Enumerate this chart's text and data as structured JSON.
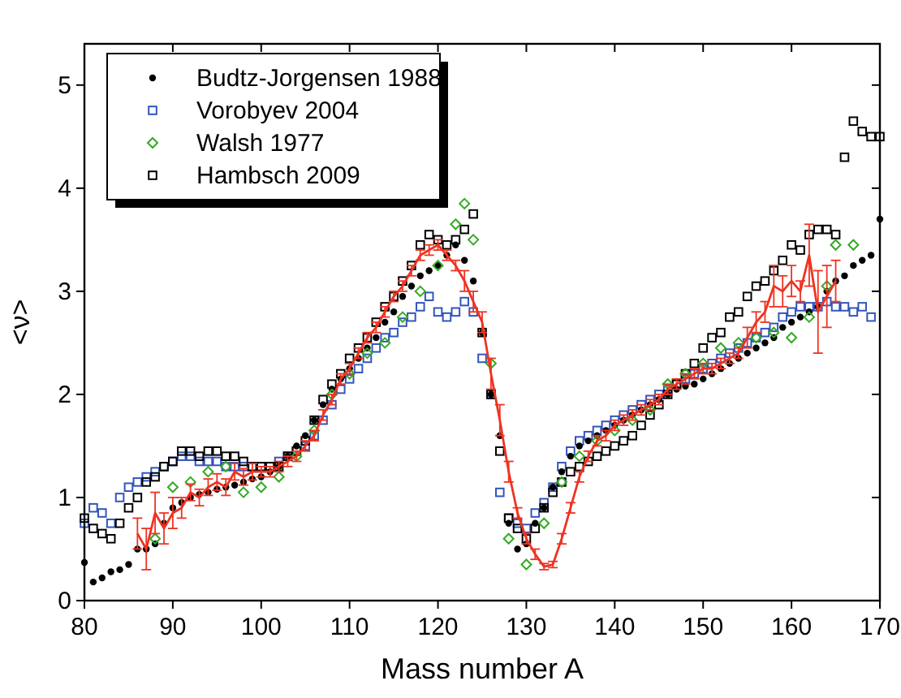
{
  "chart_data": {
    "type": "scatter",
    "xlabel": "Mass number A",
    "ylabel": "<ν>",
    "xlim": [
      80,
      170
    ],
    "ylim": [
      0,
      5.4
    ],
    "xticks": [
      80,
      90,
      100,
      110,
      120,
      130,
      140,
      150,
      160,
      170
    ],
    "yticks": [
      0,
      1,
      2,
      3,
      4,
      5
    ],
    "grid": false,
    "legend": "top left",
    "series": [
      {
        "name": "Budtz-Jorgensen 1988",
        "color": "#000000",
        "marker": "circle",
        "x": [
          80,
          81,
          82,
          83,
          84,
          85,
          86,
          87,
          88,
          89,
          90,
          91,
          92,
          93,
          94,
          95,
          96,
          97,
          98,
          99,
          100,
          101,
          102,
          103,
          104,
          105,
          106,
          107,
          108,
          109,
          110,
          111,
          112,
          113,
          114,
          115,
          116,
          117,
          118,
          119,
          120,
          121,
          122,
          123,
          124,
          125,
          126,
          127,
          128,
          129,
          130,
          131,
          132,
          133,
          134,
          135,
          136,
          137,
          138,
          139,
          140,
          141,
          142,
          143,
          144,
          145,
          146,
          147,
          148,
          149,
          150,
          151,
          152,
          153,
          154,
          155,
          156,
          157,
          158,
          159,
          160,
          161,
          162,
          163,
          164,
          165,
          166,
          167,
          168,
          169,
          170
        ],
        "values": [
          0.37,
          0.18,
          0.22,
          0.28,
          0.3,
          0.35,
          0.5,
          0.5,
          0.55,
          0.75,
          0.9,
          0.95,
          1.0,
          1.03,
          1.05,
          1.08,
          1.1,
          1.12,
          1.15,
          1.18,
          1.2,
          1.25,
          1.3,
          1.4,
          1.5,
          1.6,
          1.75,
          1.9,
          2.05,
          2.15,
          2.25,
          2.35,
          2.45,
          2.55,
          2.7,
          2.8,
          2.95,
          3.05,
          3.15,
          3.2,
          3.25,
          3.35,
          3.45,
          3.3,
          3.1,
          2.6,
          2.0,
          1.6,
          0.75,
          0.5,
          0.55,
          0.75,
          0.9,
          1.1,
          1.25,
          1.4,
          1.5,
          1.55,
          1.6,
          1.65,
          1.7,
          1.75,
          1.8,
          1.85,
          1.9,
          1.95,
          2.0,
          2.05,
          2.08,
          2.1,
          2.15,
          2.2,
          2.25,
          2.3,
          2.35,
          2.4,
          2.45,
          2.5,
          2.55,
          2.65,
          2.7,
          2.75,
          2.8,
          2.85,
          3.0,
          3.1,
          3.15,
          3.25,
          3.3,
          3.35,
          3.7
        ]
      },
      {
        "name": "Vorobyev 2004",
        "color": "#3355bb",
        "marker": "square",
        "x": [
          80,
          81,
          82,
          83,
          84,
          85,
          86,
          87,
          88,
          89,
          90,
          91,
          92,
          93,
          94,
          95,
          96,
          97,
          98,
          99,
          100,
          101,
          102,
          103,
          104,
          105,
          106,
          107,
          108,
          109,
          110,
          111,
          112,
          113,
          114,
          115,
          116,
          117,
          118,
          119,
          120,
          121,
          122,
          123,
          124,
          125,
          126,
          127,
          128,
          129,
          130,
          131,
          132,
          133,
          134,
          135,
          136,
          137,
          138,
          139,
          140,
          141,
          142,
          143,
          144,
          145,
          146,
          147,
          148,
          149,
          150,
          151,
          152,
          153,
          154,
          155,
          156,
          157,
          158,
          159,
          160,
          161,
          162,
          163,
          164,
          165,
          166,
          167,
          168,
          169
        ],
        "values": [
          0.75,
          0.9,
          0.85,
          0.75,
          1.0,
          1.1,
          1.15,
          1.2,
          1.25,
          1.3,
          1.35,
          1.4,
          1.4,
          1.35,
          1.35,
          1.35,
          1.3,
          1.3,
          1.3,
          1.3,
          1.3,
          1.3,
          1.35,
          1.4,
          1.45,
          1.5,
          1.6,
          1.75,
          1.9,
          2.05,
          2.15,
          2.25,
          2.35,
          2.45,
          2.55,
          2.6,
          2.7,
          2.75,
          2.85,
          2.95,
          2.8,
          2.75,
          2.8,
          2.9,
          2.8,
          2.35,
          2.0,
          1.05,
          0.8,
          0.75,
          0.7,
          0.85,
          0.95,
          1.1,
          1.3,
          1.45,
          1.55,
          1.6,
          1.65,
          1.7,
          1.75,
          1.8,
          1.85,
          1.9,
          1.95,
          2.0,
          2.05,
          2.1,
          2.15,
          2.2,
          2.25,
          2.3,
          2.35,
          2.4,
          2.45,
          2.5,
          2.55,
          2.6,
          2.65,
          2.75,
          2.8,
          2.85,
          2.85,
          2.85,
          2.9,
          2.85,
          2.85,
          2.8,
          2.85,
          2.75
        ]
      },
      {
        "name": "Walsh 1977",
        "color": "#33aa22",
        "marker": "diamond",
        "x": [
          88,
          90,
          92,
          94,
          96,
          98,
          100,
          102,
          104,
          106,
          108,
          110,
          112,
          114,
          116,
          118,
          120,
          122,
          123,
          124,
          126,
          128,
          130,
          132,
          134,
          136,
          138,
          140,
          142,
          144,
          146,
          148,
          150,
          152,
          154,
          156,
          158,
          160,
          162,
          164,
          165,
          167
        ],
        "values": [
          0.6,
          1.1,
          1.15,
          1.25,
          1.3,
          1.05,
          1.1,
          1.2,
          1.4,
          1.65,
          2.0,
          2.2,
          2.4,
          2.5,
          2.75,
          3.0,
          3.25,
          3.65,
          3.85,
          3.5,
          2.3,
          0.6,
          0.35,
          0.75,
          1.15,
          1.4,
          1.55,
          1.65,
          1.75,
          1.85,
          2.1,
          2.2,
          2.3,
          2.45,
          2.5,
          2.55,
          2.6,
          2.55,
          2.75,
          3.05,
          3.45,
          3.45
        ]
      },
      {
        "type": "line",
        "color": "#ee3322",
        "marker": "none",
        "x": [
          86,
          87,
          88,
          89,
          90,
          91,
          92,
          93,
          94,
          95,
          96,
          97,
          98,
          99,
          100,
          101,
          102,
          103,
          104,
          105,
          106,
          107,
          108,
          109,
          110,
          111,
          112,
          113,
          114,
          115,
          116,
          117,
          118,
          119,
          120,
          121,
          122,
          123,
          124,
          125,
          126,
          127,
          128,
          129,
          130,
          131,
          132,
          133,
          134,
          135,
          136,
          137,
          138,
          139,
          140,
          141,
          142,
          143,
          144,
          145,
          146,
          147,
          148,
          149,
          150,
          151,
          152,
          153,
          154,
          155,
          156,
          157,
          158,
          159,
          160,
          161,
          162,
          163,
          164,
          165
        ],
        "values": [
          0.65,
          0.5,
          0.85,
          0.7,
          0.85,
          0.9,
          1.05,
          1.0,
          1.1,
          1.15,
          1.1,
          1.25,
          1.2,
          1.25,
          1.25,
          1.25,
          1.3,
          1.35,
          1.4,
          1.5,
          1.6,
          1.8,
          1.95,
          2.15,
          2.25,
          2.4,
          2.55,
          2.65,
          2.8,
          2.95,
          3.05,
          3.2,
          3.35,
          3.4,
          3.45,
          3.35,
          3.25,
          3.1,
          2.9,
          2.7,
          2.2,
          1.75,
          1.25,
          0.85,
          0.6,
          0.45,
          0.33,
          0.35,
          0.6,
          0.9,
          1.2,
          1.4,
          1.55,
          1.6,
          1.7,
          1.75,
          1.8,
          1.85,
          1.9,
          1.95,
          2.05,
          2.1,
          2.15,
          2.2,
          2.25,
          2.25,
          2.3,
          2.35,
          2.4,
          2.55,
          2.7,
          2.8,
          3.05,
          3.0,
          3.1,
          3.0,
          3.35,
          2.8,
          2.95,
          3.1
        ],
        "errors": [
          0.15,
          0.2,
          0.2,
          0.15,
          0.15,
          0.1,
          0.08,
          0.08,
          0.08,
          0.08,
          0.08,
          0.08,
          0.08,
          0.08,
          0.05,
          0.05,
          0.05,
          0.05,
          0.05,
          0.05,
          0.05,
          0.05,
          0.05,
          0.05,
          0.05,
          0.05,
          0.05,
          0.05,
          0.05,
          0.05,
          0.05,
          0.05,
          0.05,
          0.05,
          0.05,
          0.05,
          0.05,
          0.1,
          0.1,
          0.1,
          0.15,
          0.15,
          0.1,
          0.05,
          0.05,
          0.05,
          0.03,
          0.03,
          0.05,
          0.05,
          0.05,
          0.05,
          0.05,
          0.05,
          0.05,
          0.05,
          0.05,
          0.05,
          0.05,
          0.05,
          0.05,
          0.05,
          0.05,
          0.05,
          0.05,
          0.05,
          0.05,
          0.05,
          0.05,
          0.1,
          0.1,
          0.1,
          0.2,
          0.15,
          0.15,
          0.1,
          0.3,
          0.4,
          0.3,
          0.2
        ]
      },
      {
        "name": "Hambsch 2009",
        "color": "#000000",
        "marker": "square",
        "x": [
          80,
          81,
          82,
          83,
          84,
          85,
          86,
          87,
          88,
          89,
          90,
          91,
          92,
          93,
          94,
          95,
          96,
          97,
          98,
          99,
          100,
          101,
          102,
          103,
          104,
          105,
          106,
          107,
          108,
          109,
          110,
          111,
          112,
          113,
          114,
          115,
          116,
          117,
          118,
          119,
          120,
          121,
          122,
          123,
          124,
          125,
          126,
          127,
          128,
          129,
          130,
          131,
          132,
          133,
          134,
          135,
          136,
          137,
          138,
          139,
          140,
          141,
          142,
          143,
          144,
          145,
          146,
          147,
          148,
          149,
          150,
          151,
          152,
          153,
          154,
          155,
          156,
          157,
          158,
          159,
          160,
          161,
          162,
          163,
          164,
          165,
          166,
          167,
          168,
          169,
          170
        ],
        "values": [
          0.8,
          0.7,
          0.65,
          0.6,
          0.75,
          0.9,
          1.0,
          1.15,
          1.2,
          1.3,
          1.35,
          1.45,
          1.45,
          1.4,
          1.45,
          1.45,
          1.4,
          1.4,
          1.35,
          1.3,
          1.3,
          1.3,
          1.3,
          1.4,
          1.45,
          1.55,
          1.75,
          1.95,
          2.1,
          2.2,
          2.35,
          2.45,
          2.55,
          2.7,
          2.85,
          2.95,
          3.1,
          3.25,
          3.45,
          3.55,
          3.5,
          3.45,
          3.5,
          3.6,
          3.75,
          2.6,
          2.0,
          1.45,
          0.8,
          0.7,
          0.6,
          0.7,
          0.9,
          1.05,
          1.15,
          1.25,
          1.3,
          1.35,
          1.4,
          1.45,
          1.5,
          1.55,
          1.6,
          1.7,
          1.8,
          1.9,
          2.0,
          2.1,
          2.2,
          2.3,
          2.45,
          2.55,
          2.6,
          2.75,
          2.8,
          2.95,
          3.05,
          3.1,
          3.2,
          3.3,
          3.45,
          3.4,
          3.55,
          3.6,
          3.6,
          3.55,
          4.3,
          4.65,
          4.55,
          4.5,
          4.5
        ]
      }
    ]
  }
}
